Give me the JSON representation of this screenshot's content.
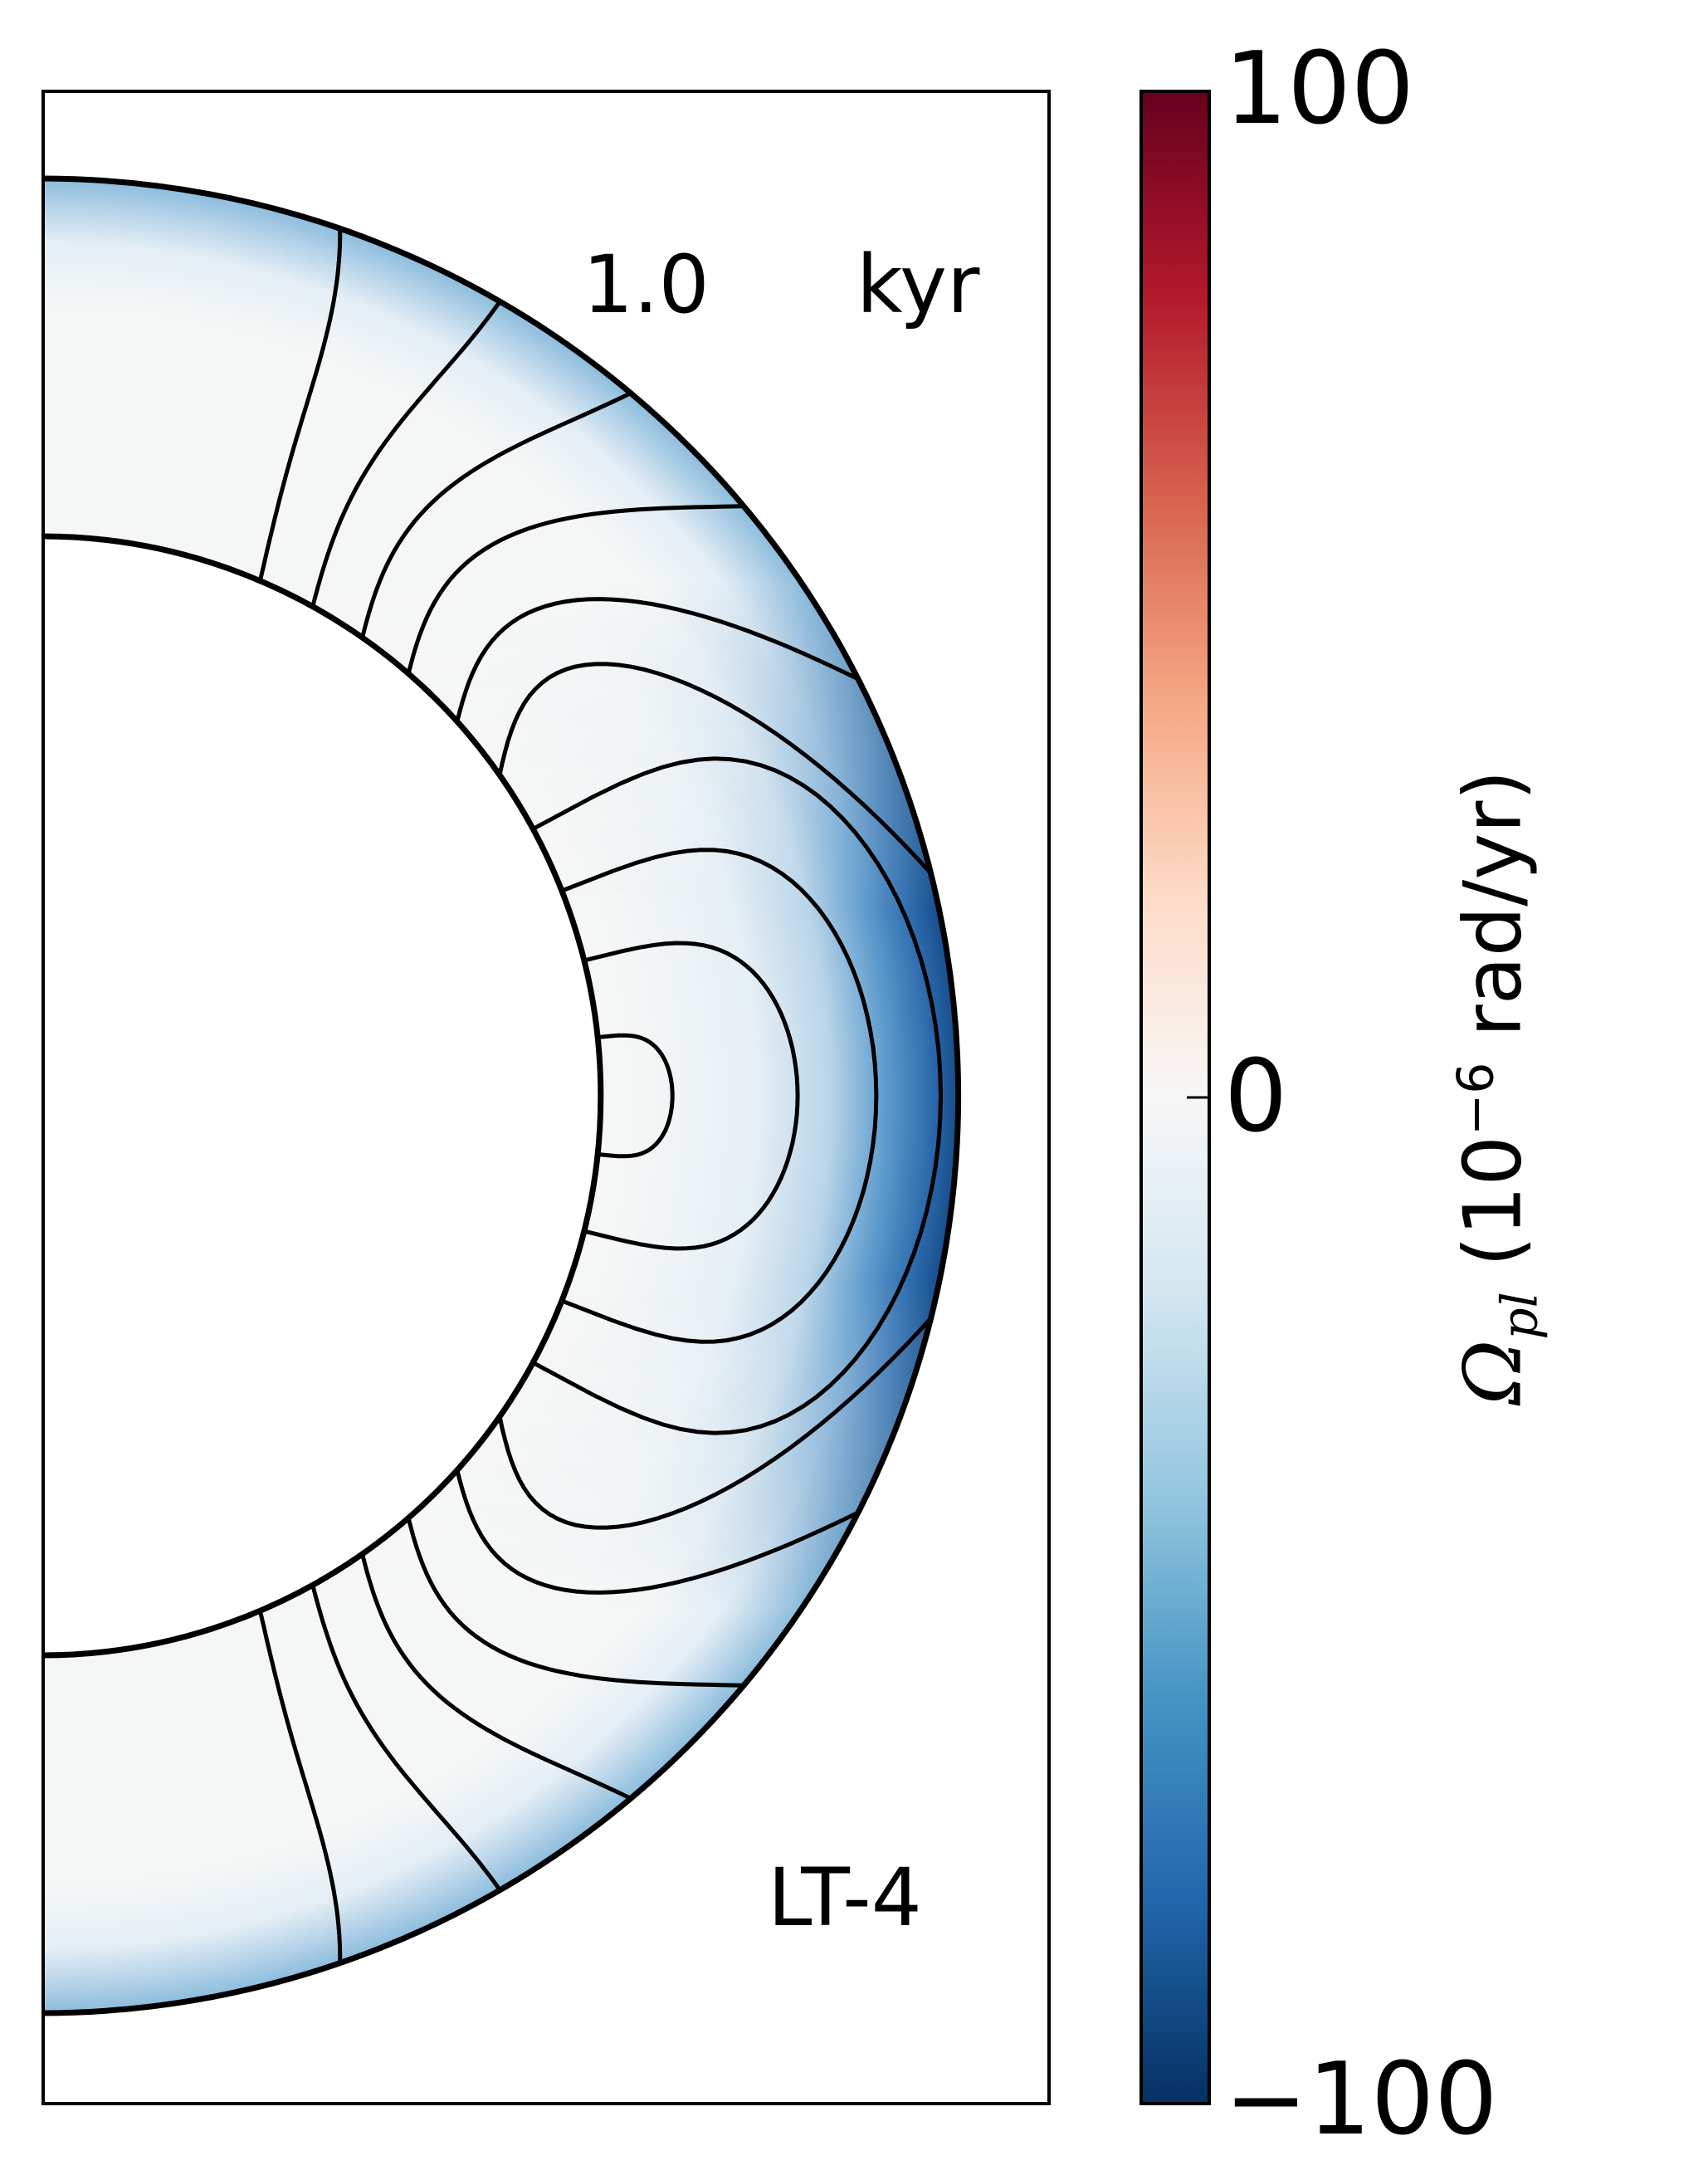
{
  "chart_data": {
    "type": "heatmap",
    "time_value": "1.0",
    "time_unit": "kyr",
    "model_label": "LT-4",
    "colorbar": {
      "colormap": "RdBu_r",
      "vmin": -100,
      "vmax": 100,
      "tick_labels": [
        "100",
        "0",
        "−100"
      ],
      "ticks": [
        100,
        0,
        -100
      ],
      "label_symbol": "Ω",
      "label_subscript": "pl",
      "label_base": "(10",
      "label_exponent": "−6",
      "label_unit": "rad/yr)"
    },
    "field": {
      "name": "Omega_pl",
      "inner_radius_fraction": 0.61,
      "interior_value": 0,
      "equator_surface_value": -100,
      "pole_surface_value": -60
    },
    "colors": {
      "negative_strong": "#0b3a78",
      "negative_mid": "#2f78b6",
      "negative_light": "#9cc6e0",
      "neutral": "#f5f7f6",
      "positive_light": "#f4a582",
      "positive_strong": "#67001f"
    }
  }
}
